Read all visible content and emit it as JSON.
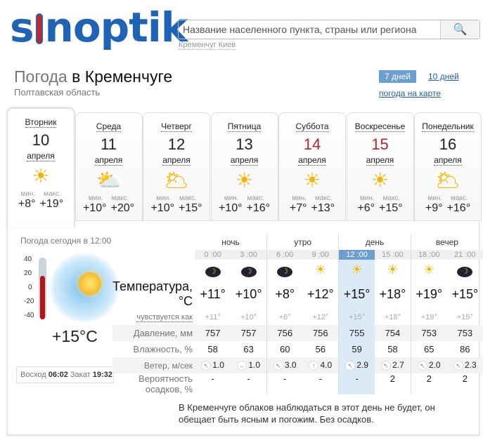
{
  "header": {
    "logo": "sinoptik",
    "search_placeholder": "Название населенного пункта, страны или региона",
    "quick_links": [
      "Кременчуг",
      "Киев"
    ]
  },
  "title": {
    "prefix": "Погода",
    "city": "в Кременчуге",
    "region": "Полтавская область"
  },
  "nav": {
    "d7": "7 дней",
    "d10": "10 дней",
    "map": "погода на карте"
  },
  "days": [
    {
      "name": "Вторник",
      "date": "10",
      "month": "апреля",
      "icon": "sun-icon",
      "min": "+8°",
      "max": "+19°",
      "weekend": false
    },
    {
      "name": "Среда",
      "date": "11",
      "month": "апреля",
      "icon": "sun-cloud-icon",
      "min": "+10°",
      "max": "+20°",
      "weekend": false
    },
    {
      "name": "Четверг",
      "date": "12",
      "month": "апреля",
      "icon": "sun-clouds-icon",
      "min": "+10°",
      "max": "+15°",
      "weekend": false
    },
    {
      "name": "Пятница",
      "date": "13",
      "month": "апреля",
      "icon": "sun-icon",
      "min": "+10°",
      "max": "+16°",
      "weekend": false
    },
    {
      "name": "Суббота",
      "date": "14",
      "month": "апреля",
      "icon": "sun-icon",
      "min": "+7°",
      "max": "+13°",
      "weekend": true
    },
    {
      "name": "Воскресенье",
      "date": "15",
      "month": "апреля",
      "icon": "sun-icon",
      "min": "+6°",
      "max": "+15°",
      "weekend": true
    },
    {
      "name": "Понедельник",
      "date": "16",
      "month": "апреля",
      "icon": "sun-clouds-icon",
      "min": "+9°",
      "max": "+16°",
      "weekend": false
    }
  ],
  "labels": {
    "min": "мин.",
    "max": "макс."
  },
  "now": {
    "label": "Погода сегодня в 12:00",
    "temp": "+15°C",
    "scale": [
      "40",
      "20",
      "0",
      "-20",
      "-40"
    ],
    "sunrise_label": "Восход",
    "sunrise": "06:02",
    "sunset_label": "Закат",
    "sunset": "19:32"
  },
  "table": {
    "periods": [
      "ночь",
      "утро",
      "день",
      "вечер"
    ],
    "times": [
      "0 :00",
      "3 :00",
      "6 :00",
      "9 :00",
      "12 :00",
      "15 :00",
      "18 :00",
      "21 :00"
    ],
    "icons": [
      "moon",
      "moon",
      "moon",
      "sun",
      "sun",
      "sun",
      "sun",
      "moon"
    ],
    "row_labels": {
      "temp": "Температура, °C",
      "feel": "чувствуется как",
      "pres": "Давление, мм",
      "hum": "Влажность, %",
      "wind": "Ветер, м/сек",
      "prec": "Вероятность осадков, %"
    },
    "temp": [
      "+11°",
      "+10°",
      "+8°",
      "+12°",
      "+15°",
      "+18°",
      "+19°",
      "+15°"
    ],
    "feel": [
      "+11°",
      "+10°",
      "+6°",
      "+12°",
      "+15°",
      "+18°",
      "+19°",
      "+15°"
    ],
    "pres": [
      "757",
      "757",
      "756",
      "756",
      "755",
      "754",
      "753",
      "753"
    ],
    "hum": [
      "58",
      "63",
      "60",
      "56",
      "59",
      "58",
      "65",
      "86"
    ],
    "wind_dir": [
      "↖",
      "←",
      "↖",
      "↑",
      "↖",
      "↖",
      "↖",
      "↖"
    ],
    "wind": [
      "1.0",
      "1.0",
      "3.0",
      "4.0",
      "2.9",
      "2.7",
      "2.0",
      "2.3"
    ],
    "prec": [
      "-",
      "-",
      "-",
      "-",
      "-",
      "2",
      "2",
      "2"
    ]
  },
  "description": "В Кременчуге облаков наблюдаться в этот день не будет, он обещает быть ясным и погожим. Без осадков."
}
